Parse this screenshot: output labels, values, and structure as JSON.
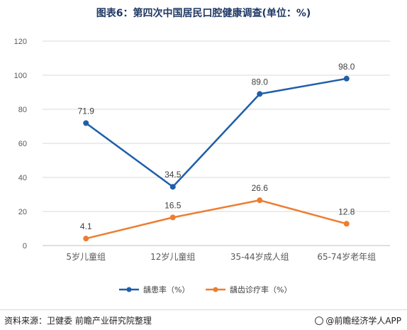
{
  "title": "图表6：第四次中国居民口腔健康调查(单位：%)",
  "footer": {
    "source": "资料来源：卫健委 前瞻产业研究院整理",
    "brand": "@前瞻经济学人APP"
  },
  "colors": {
    "series1": "#1f5fa8",
    "series2": "#ed7d31",
    "grid": "#d9d9d9",
    "axis": "#595959"
  },
  "chart_data": {
    "type": "line",
    "categories": [
      "5岁儿童组",
      "12岁儿童组",
      "35-44岁成人组",
      "65-74岁老年组"
    ],
    "ylim": [
      0,
      120
    ],
    "yticks": [
      0,
      20,
      40,
      60,
      80,
      100,
      120
    ],
    "grid": true,
    "legend": "bottom",
    "series": [
      {
        "name": "龋患率（%）",
        "values": [
          71.9,
          34.5,
          89.0,
          98.0
        ],
        "labels": [
          "71.9",
          "34.5",
          "89.0",
          "98.0"
        ]
      },
      {
        "name": "龋齿诊疗率（%）",
        "values": [
          4.1,
          16.5,
          26.6,
          12.8
        ],
        "labels": [
          "4.1",
          "16.5",
          "26.6",
          "12.8"
        ]
      }
    ]
  }
}
